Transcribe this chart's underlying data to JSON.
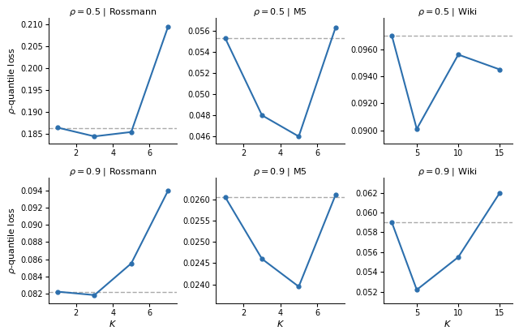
{
  "subplots": [
    {
      "title": "$\\rho = 0.5$ | Rossmann",
      "x": [
        1,
        3,
        5,
        7
      ],
      "y": [
        0.1865,
        0.1845,
        0.1855,
        0.2095
      ],
      "baseline": 0.1863,
      "xlabel": "",
      "xlim": [
        0.5,
        7.5
      ],
      "xticks": [
        2,
        4,
        6
      ],
      "ylim": [
        0.1828,
        0.2115
      ],
      "yticks": [
        0.185,
        0.19,
        0.195,
        0.2,
        0.205,
        0.21
      ]
    },
    {
      "title": "$\\rho = 0.5$ | M5",
      "x": [
        1,
        3,
        5,
        7
      ],
      "y": [
        0.0553,
        0.048,
        0.046,
        0.0563
      ],
      "baseline": 0.0553,
      "xlabel": "",
      "xlim": [
        0.5,
        7.5
      ],
      "xticks": [
        2,
        4,
        6
      ],
      "ylim": [
        0.0453,
        0.0572
      ],
      "yticks": [
        0.046,
        0.048,
        0.05,
        0.052,
        0.054,
        0.056
      ]
    },
    {
      "title": "$\\rho = 0.5$ | Wiki",
      "x": [
        2,
        5,
        10,
        15
      ],
      "y": [
        0.097,
        0.0901,
        0.0956,
        0.0945
      ],
      "baseline": 0.097,
      "xlabel": "",
      "xlim": [
        1.0,
        16.5
      ],
      "xticks": [
        5,
        10,
        15
      ],
      "ylim": [
        0.089,
        0.0983
      ],
      "yticks": [
        0.09,
        0.092,
        0.094,
        0.096
      ]
    },
    {
      "title": "$\\rho = 0.9$ | Rossmann",
      "x": [
        1,
        3,
        5,
        7
      ],
      "y": [
        0.0822,
        0.0818,
        0.0855,
        0.094
      ],
      "baseline": 0.0822,
      "xlabel": "$K$",
      "xlim": [
        0.5,
        7.5
      ],
      "xticks": [
        2,
        4,
        6
      ],
      "ylim": [
        0.0808,
        0.0955
      ],
      "yticks": [
        0.082,
        0.084,
        0.086,
        0.088,
        0.09,
        0.092,
        0.094
      ]
    },
    {
      "title": "$\\rho = 0.9$ | M5",
      "x": [
        1,
        3,
        5,
        7
      ],
      "y": [
        0.02605,
        0.0246,
        0.02395,
        0.0261
      ],
      "baseline": 0.02605,
      "xlabel": "$K$",
      "xlim": [
        0.5,
        7.5
      ],
      "xticks": [
        2,
        4,
        6
      ],
      "ylim": [
        0.02355,
        0.0265
      ],
      "yticks": [
        0.024,
        0.0245,
        0.025,
        0.0255,
        0.026
      ]
    },
    {
      "title": "$\\rho = 0.9$ | Wiki",
      "x": [
        2,
        5,
        10,
        15
      ],
      "y": [
        0.059,
        0.0522,
        0.0555,
        0.062
      ],
      "baseline": 0.059,
      "xlabel": "$K$",
      "xlim": [
        1.0,
        16.5
      ],
      "xticks": [
        5,
        10,
        15
      ],
      "ylim": [
        0.0508,
        0.0635
      ],
      "yticks": [
        0.052,
        0.054,
        0.056,
        0.058,
        0.06,
        0.062
      ]
    }
  ],
  "line_color": "#2c6fad",
  "baseline_color": "#aaaaaa",
  "ylabel": "$\\rho$-quantile loss",
  "fig_bg": "#ffffff"
}
